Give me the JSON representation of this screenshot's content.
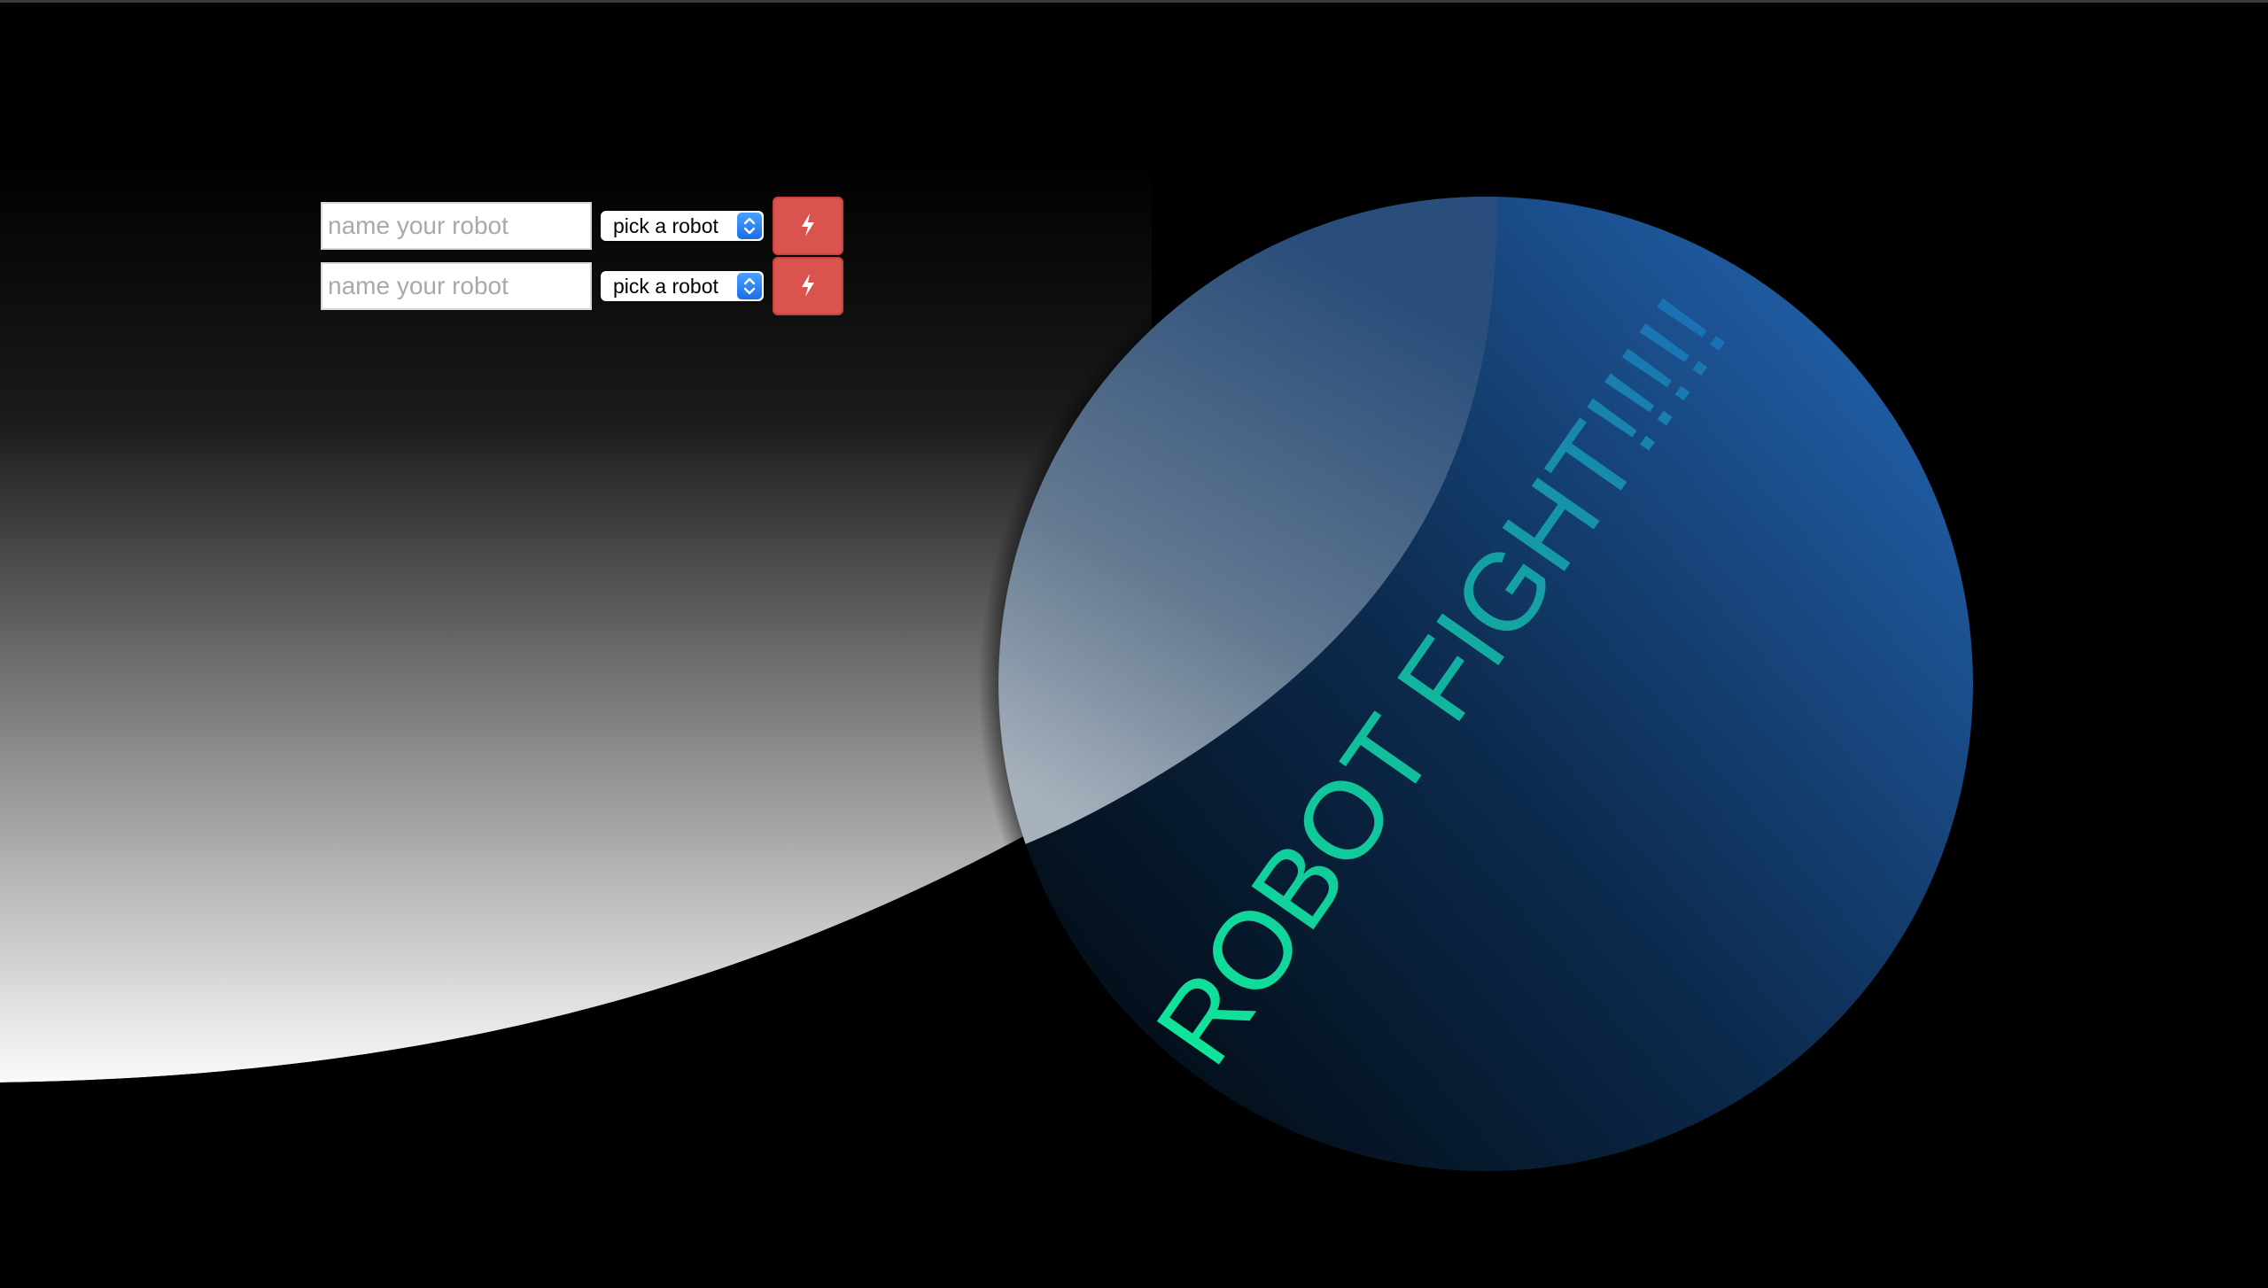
{
  "page": {
    "title": "ROBOT FIGHT!!!!!"
  },
  "forms": [
    {
      "name_placeholder": "name your robot",
      "name_value": "",
      "select_value": "pick a robot",
      "button_icon": "lightning-bolt-icon"
    },
    {
      "name_placeholder": "name your robot",
      "name_value": "",
      "select_value": "pick a robot",
      "button_icon": "lightning-bolt-icon"
    }
  ],
  "colors": {
    "background": "#000000",
    "orb_dark": "#04101c",
    "orb_light": "#1f5aa0",
    "title_start": "#10e69a",
    "title_end": "#1a6fb5",
    "button": "#d9534f",
    "select_arrows": "#2a82f5"
  }
}
